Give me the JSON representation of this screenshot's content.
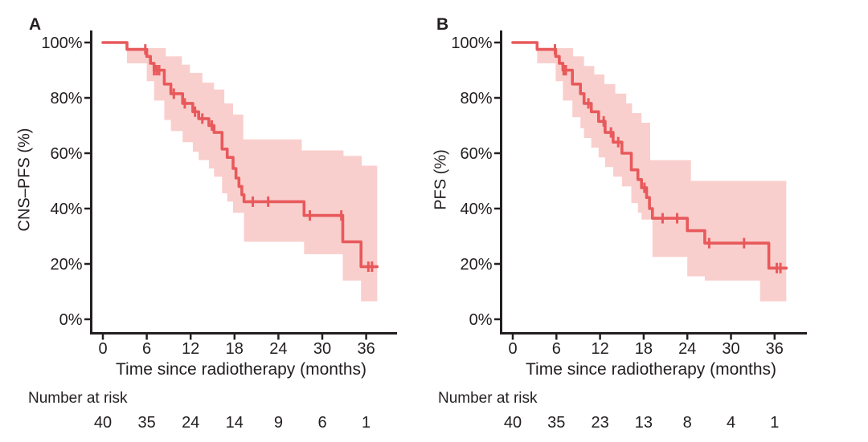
{
  "figure": {
    "kind": "kaplan-meier-figure",
    "background": "#ffffff",
    "text_color": "#231f20",
    "axis_color": "#231f20"
  },
  "chart_data": [
    {
      "type": "line",
      "subtype": "kaplan-meier-step",
      "panel_label": "A",
      "ylabel": "CNS–PFS (%)",
      "xlabel": "Time since radiotherapy (months)",
      "x_ticks": [
        0,
        6,
        12,
        18,
        24,
        30,
        36
      ],
      "y_ticks": [
        "0%",
        "20%",
        "40%",
        "60%",
        "80%",
        "100%"
      ],
      "xlim": [
        0,
        40
      ],
      "ylim": [
        0,
        100
      ],
      "grid": false,
      "legend": "none",
      "line_color": "#e8595b",
      "band_color": "#f9cfcd",
      "series": {
        "name": "CNS-PFS",
        "steps": [
          [
            0,
            100
          ],
          [
            3.3,
            97.5
          ],
          [
            6,
            95
          ],
          [
            6.5,
            92.5
          ],
          [
            7,
            90
          ],
          [
            8.4,
            85
          ],
          [
            9.3,
            81.5
          ],
          [
            10.9,
            78
          ],
          [
            12.3,
            75
          ],
          [
            13.1,
            72.5
          ],
          [
            14.5,
            70
          ],
          [
            15.2,
            67.5
          ],
          [
            16.3,
            61.5
          ],
          [
            17,
            58.5
          ],
          [
            17.8,
            54.5
          ],
          [
            18.2,
            51
          ],
          [
            18.6,
            48
          ],
          [
            19,
            45
          ],
          [
            19.3,
            42.5
          ],
          [
            27.5,
            37.5
          ],
          [
            32.8,
            28
          ],
          [
            35.3,
            19
          ]
        ],
        "end_time": 37.5,
        "censors": [
          [
            5.8,
            97.5
          ],
          [
            7,
            90
          ],
          [
            7.35,
            90
          ],
          [
            7.7,
            90
          ],
          [
            9.7,
            81.5
          ],
          [
            11.2,
            78
          ],
          [
            12.6,
            75
          ],
          [
            13.6,
            72.5
          ],
          [
            14.9,
            70
          ],
          [
            20.5,
            42.5
          ],
          [
            22.6,
            42.5
          ],
          [
            28.3,
            37.5
          ],
          [
            32.6,
            37.5
          ],
          [
            36.3,
            19
          ],
          [
            36.8,
            19
          ]
        ],
        "band_upper": [
          [
            3.3,
            98
          ],
          [
            8.6,
            95
          ],
          [
            10.8,
            92
          ],
          [
            11.9,
            89
          ],
          [
            13.6,
            85.5
          ],
          [
            15.2,
            83
          ],
          [
            16.6,
            78
          ],
          [
            17.8,
            74
          ],
          [
            19.2,
            65
          ],
          [
            27.2,
            61
          ],
          [
            32.9,
            59
          ],
          [
            35.4,
            55.5
          ]
        ],
        "band_lower": [
          [
            3.3,
            92.5
          ],
          [
            6,
            86
          ],
          [
            7,
            79
          ],
          [
            8.4,
            72
          ],
          [
            9.3,
            68
          ],
          [
            10.9,
            64
          ],
          [
            12.3,
            60.5
          ],
          [
            13.1,
            57.5
          ],
          [
            14.5,
            54.5
          ],
          [
            15.2,
            51.5
          ],
          [
            16.3,
            45.5
          ],
          [
            17,
            42.5
          ],
          [
            17.8,
            38.5
          ],
          [
            19.3,
            28
          ],
          [
            27.5,
            23.5
          ],
          [
            32.8,
            14
          ],
          [
            35.3,
            6.5
          ]
        ]
      },
      "risk_table": {
        "label": "Number at risk",
        "times": [
          0,
          6,
          12,
          18,
          24,
          30,
          36
        ],
        "counts": [
          40,
          35,
          24,
          14,
          9,
          6,
          1
        ]
      }
    },
    {
      "type": "line",
      "subtype": "kaplan-meier-step",
      "panel_label": "B",
      "ylabel": "PFS (%)",
      "xlabel": "Time since radiotherapy (months)",
      "x_ticks": [
        0,
        6,
        12,
        18,
        24,
        30,
        36
      ],
      "y_ticks": [
        "0%",
        "20%",
        "40%",
        "60%",
        "80%",
        "100%"
      ],
      "xlim": [
        0,
        40
      ],
      "ylim": [
        0,
        100
      ],
      "grid": false,
      "legend": "none",
      "line_color": "#e8595b",
      "band_color": "#f9cfcd",
      "series": {
        "name": "PFS",
        "steps": [
          [
            0,
            100
          ],
          [
            3.35,
            97.5
          ],
          [
            5.9,
            95
          ],
          [
            6.4,
            92.5
          ],
          [
            6.9,
            90
          ],
          [
            8.2,
            85
          ],
          [
            9.3,
            81.5
          ],
          [
            9.8,
            78
          ],
          [
            10.8,
            75
          ],
          [
            11.8,
            71.5
          ],
          [
            12.7,
            67.5
          ],
          [
            13.8,
            64
          ],
          [
            15,
            60
          ],
          [
            16.3,
            54
          ],
          [
            17.2,
            50.5
          ],
          [
            17.7,
            47.5
          ],
          [
            18.4,
            44
          ],
          [
            18.8,
            40
          ],
          [
            19.2,
            36.5
          ],
          [
            24,
            32
          ],
          [
            26.4,
            27.5
          ],
          [
            35.2,
            18.5
          ]
        ],
        "end_time": 37.6,
        "censors": [
          [
            5.8,
            97.5
          ],
          [
            7,
            90
          ],
          [
            7.3,
            90
          ],
          [
            10.4,
            78
          ],
          [
            12.5,
            71.5
          ],
          [
            13.5,
            67.5
          ],
          [
            14.5,
            64
          ],
          [
            18.1,
            47.5
          ],
          [
            20.6,
            36.5
          ],
          [
            22.6,
            36.5
          ],
          [
            27,
            27.5
          ],
          [
            31.8,
            27.5
          ],
          [
            36.3,
            18.5
          ],
          [
            36.8,
            18.5
          ]
        ],
        "band_upper": [
          [
            3.35,
            98
          ],
          [
            8.3,
            95
          ],
          [
            9.8,
            91.5
          ],
          [
            11.2,
            88.5
          ],
          [
            12.6,
            85
          ],
          [
            14.1,
            81.5
          ],
          [
            15.6,
            78
          ],
          [
            16.4,
            74.5
          ],
          [
            17.7,
            71
          ],
          [
            18.9,
            57.5
          ],
          [
            24.5,
            50
          ]
        ],
        "band_lower": [
          [
            3.35,
            92.5
          ],
          [
            5.9,
            86
          ],
          [
            6.9,
            79
          ],
          [
            8.2,
            73
          ],
          [
            9.3,
            69
          ],
          [
            9.8,
            65.5
          ],
          [
            10.8,
            62
          ],
          [
            11.8,
            58.5
          ],
          [
            12.7,
            55
          ],
          [
            13.8,
            51.5
          ],
          [
            15,
            48
          ],
          [
            16.3,
            42
          ],
          [
            17.2,
            38.5
          ],
          [
            17.7,
            36
          ],
          [
            19.2,
            22.5
          ],
          [
            24,
            15.5
          ],
          [
            26.4,
            14
          ],
          [
            34,
            6.5
          ]
        ]
      },
      "risk_table": {
        "label": "Number at risk",
        "times": [
          0,
          6,
          12,
          18,
          24,
          30,
          36
        ],
        "counts": [
          40,
          35,
          23,
          13,
          8,
          4,
          1
        ]
      }
    }
  ]
}
